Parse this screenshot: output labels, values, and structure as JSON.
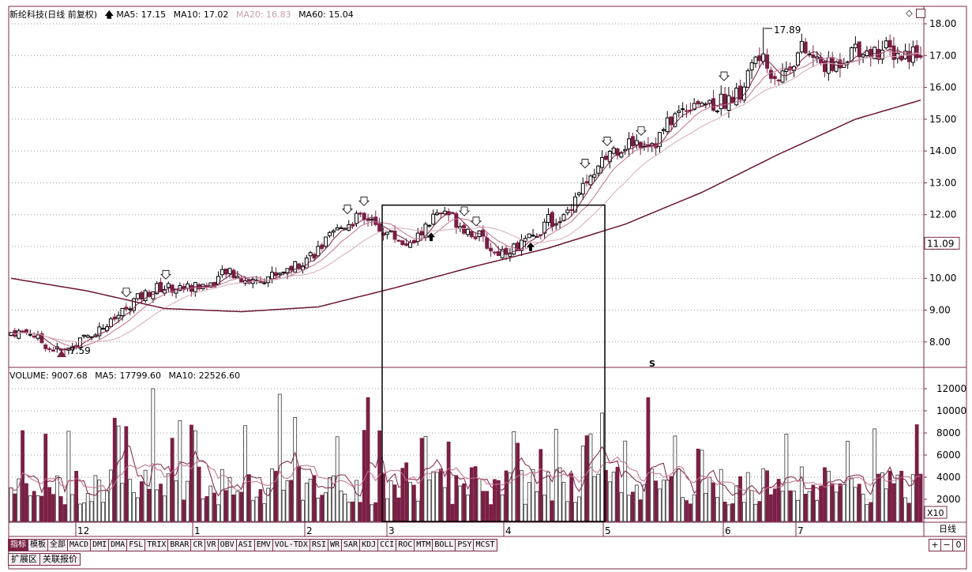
{
  "colors": {
    "up": "#000000",
    "down": "#7a1f45",
    "ma5": "#7a1f45",
    "ma10": "#c07090",
    "ma20": "#d9a8b8",
    "ma60": "#6a1530",
    "frame": "#7a2a4a",
    "grid": "#999999"
  },
  "header": {
    "title": "新纶科技(日线 前复权)",
    "ma5_label": "MA5: 17.15",
    "ma10_label": "MA10: 17.02",
    "ma20_label": "MA20: 16.83",
    "ma60_label": "MA60: 15.04"
  },
  "volume_header": {
    "volume_label": "VOLUME: 9007.68",
    "ma5_label": "MA5: 17799.60",
    "ma10_label": "MA10: 22526.60"
  },
  "price_axis": {
    "ticks": [
      "18.00",
      "17.00",
      "16.00",
      "15.00",
      "14.00",
      "13.00",
      "12.00",
      "11.00",
      "10.00",
      "9.00",
      "8.00"
    ],
    "current": "11.09"
  },
  "volume_axis": {
    "ticks": [
      "12000",
      "10000",
      "8000",
      "6000",
      "4000",
      "2000"
    ],
    "unit": "X10"
  },
  "date_axis": [
    "12",
    "1",
    "2",
    "3",
    "4",
    "5",
    "6",
    "7"
  ],
  "annotations": {
    "low": "7.59",
    "high": "17.89",
    "s_marker": "S"
  },
  "indicator_tabs": [
    "指标",
    "模板",
    "全部",
    "MACD",
    "DMI",
    "DMA",
    "FSL",
    "TRIX",
    "BRAR",
    "CR",
    "VR",
    "OBV",
    "ASI",
    "EMV",
    "VOL-TDX",
    "RSI",
    "WR",
    "SAR",
    "KDJ",
    "CCI",
    "ROC",
    "MTM",
    "BOLL",
    "PSY",
    "MCST"
  ],
  "bottom_tabs": [
    "扩展区",
    "关联报价"
  ],
  "period": "日线",
  "period_controls": [
    "+",
    "−",
    "0"
  ],
  "chart_data": {
    "type": "candlestick",
    "title": "新纶科技(日线 前复权)",
    "y_range": [
      7.2,
      18.3
    ],
    "volume_range": [
      0,
      13000
    ],
    "highlight_box": {
      "from_month": "3",
      "to_month": "5",
      "price_low": 7.8,
      "price_high": 12.3
    },
    "price_anchors": [
      [
        0,
        8.3
      ],
      [
        5,
        8.3
      ],
      [
        10,
        7.8
      ],
      [
        14,
        7.7
      ],
      [
        20,
        8.2
      ],
      [
        26,
        8.6
      ],
      [
        32,
        9.3
      ],
      [
        38,
        9.7
      ],
      [
        45,
        9.7
      ],
      [
        52,
        9.8
      ],
      [
        56,
        10.2
      ],
      [
        62,
        9.9
      ],
      [
        68,
        10.1
      ],
      [
        74,
        10.4
      ],
      [
        80,
        10.9
      ],
      [
        86,
        11.6
      ],
      [
        90,
        11.9
      ],
      [
        94,
        11.7
      ],
      [
        100,
        11.3
      ],
      [
        104,
        11.0
      ],
      [
        110,
        11.9
      ],
      [
        114,
        12.0
      ],
      [
        118,
        11.6
      ],
      [
        122,
        11.3
      ],
      [
        126,
        10.8
      ],
      [
        132,
        11.0
      ],
      [
        136,
        11.3
      ],
      [
        140,
        11.8
      ],
      [
        144,
        11.9
      ],
      [
        148,
        12.8
      ],
      [
        152,
        13.2
      ],
      [
        156,
        14.0
      ],
      [
        162,
        14.3
      ],
      [
        168,
        14.3
      ],
      [
        172,
        15.0
      ],
      [
        178,
        15.6
      ],
      [
        184,
        15.5
      ],
      [
        190,
        15.8
      ],
      [
        194,
        17.0
      ],
      [
        200,
        16.3
      ],
      [
        206,
        17.2
      ],
      [
        210,
        16.8
      ],
      [
        214,
        16.6
      ],
      [
        220,
        17.3
      ],
      [
        224,
        17.1
      ],
      [
        228,
        17.2
      ],
      [
        232,
        17.0
      ],
      [
        237,
        17.2
      ]
    ],
    "ma60_anchors": [
      [
        0,
        10.0
      ],
      [
        20,
        9.6
      ],
      [
        40,
        9.05
      ],
      [
        60,
        8.95
      ],
      [
        80,
        9.1
      ],
      [
        100,
        9.7
      ],
      [
        120,
        10.35
      ],
      [
        140,
        10.95
      ],
      [
        160,
        11.7
      ],
      [
        180,
        12.7
      ],
      [
        200,
        13.9
      ],
      [
        220,
        15.0
      ],
      [
        237,
        15.6
      ]
    ]
  }
}
